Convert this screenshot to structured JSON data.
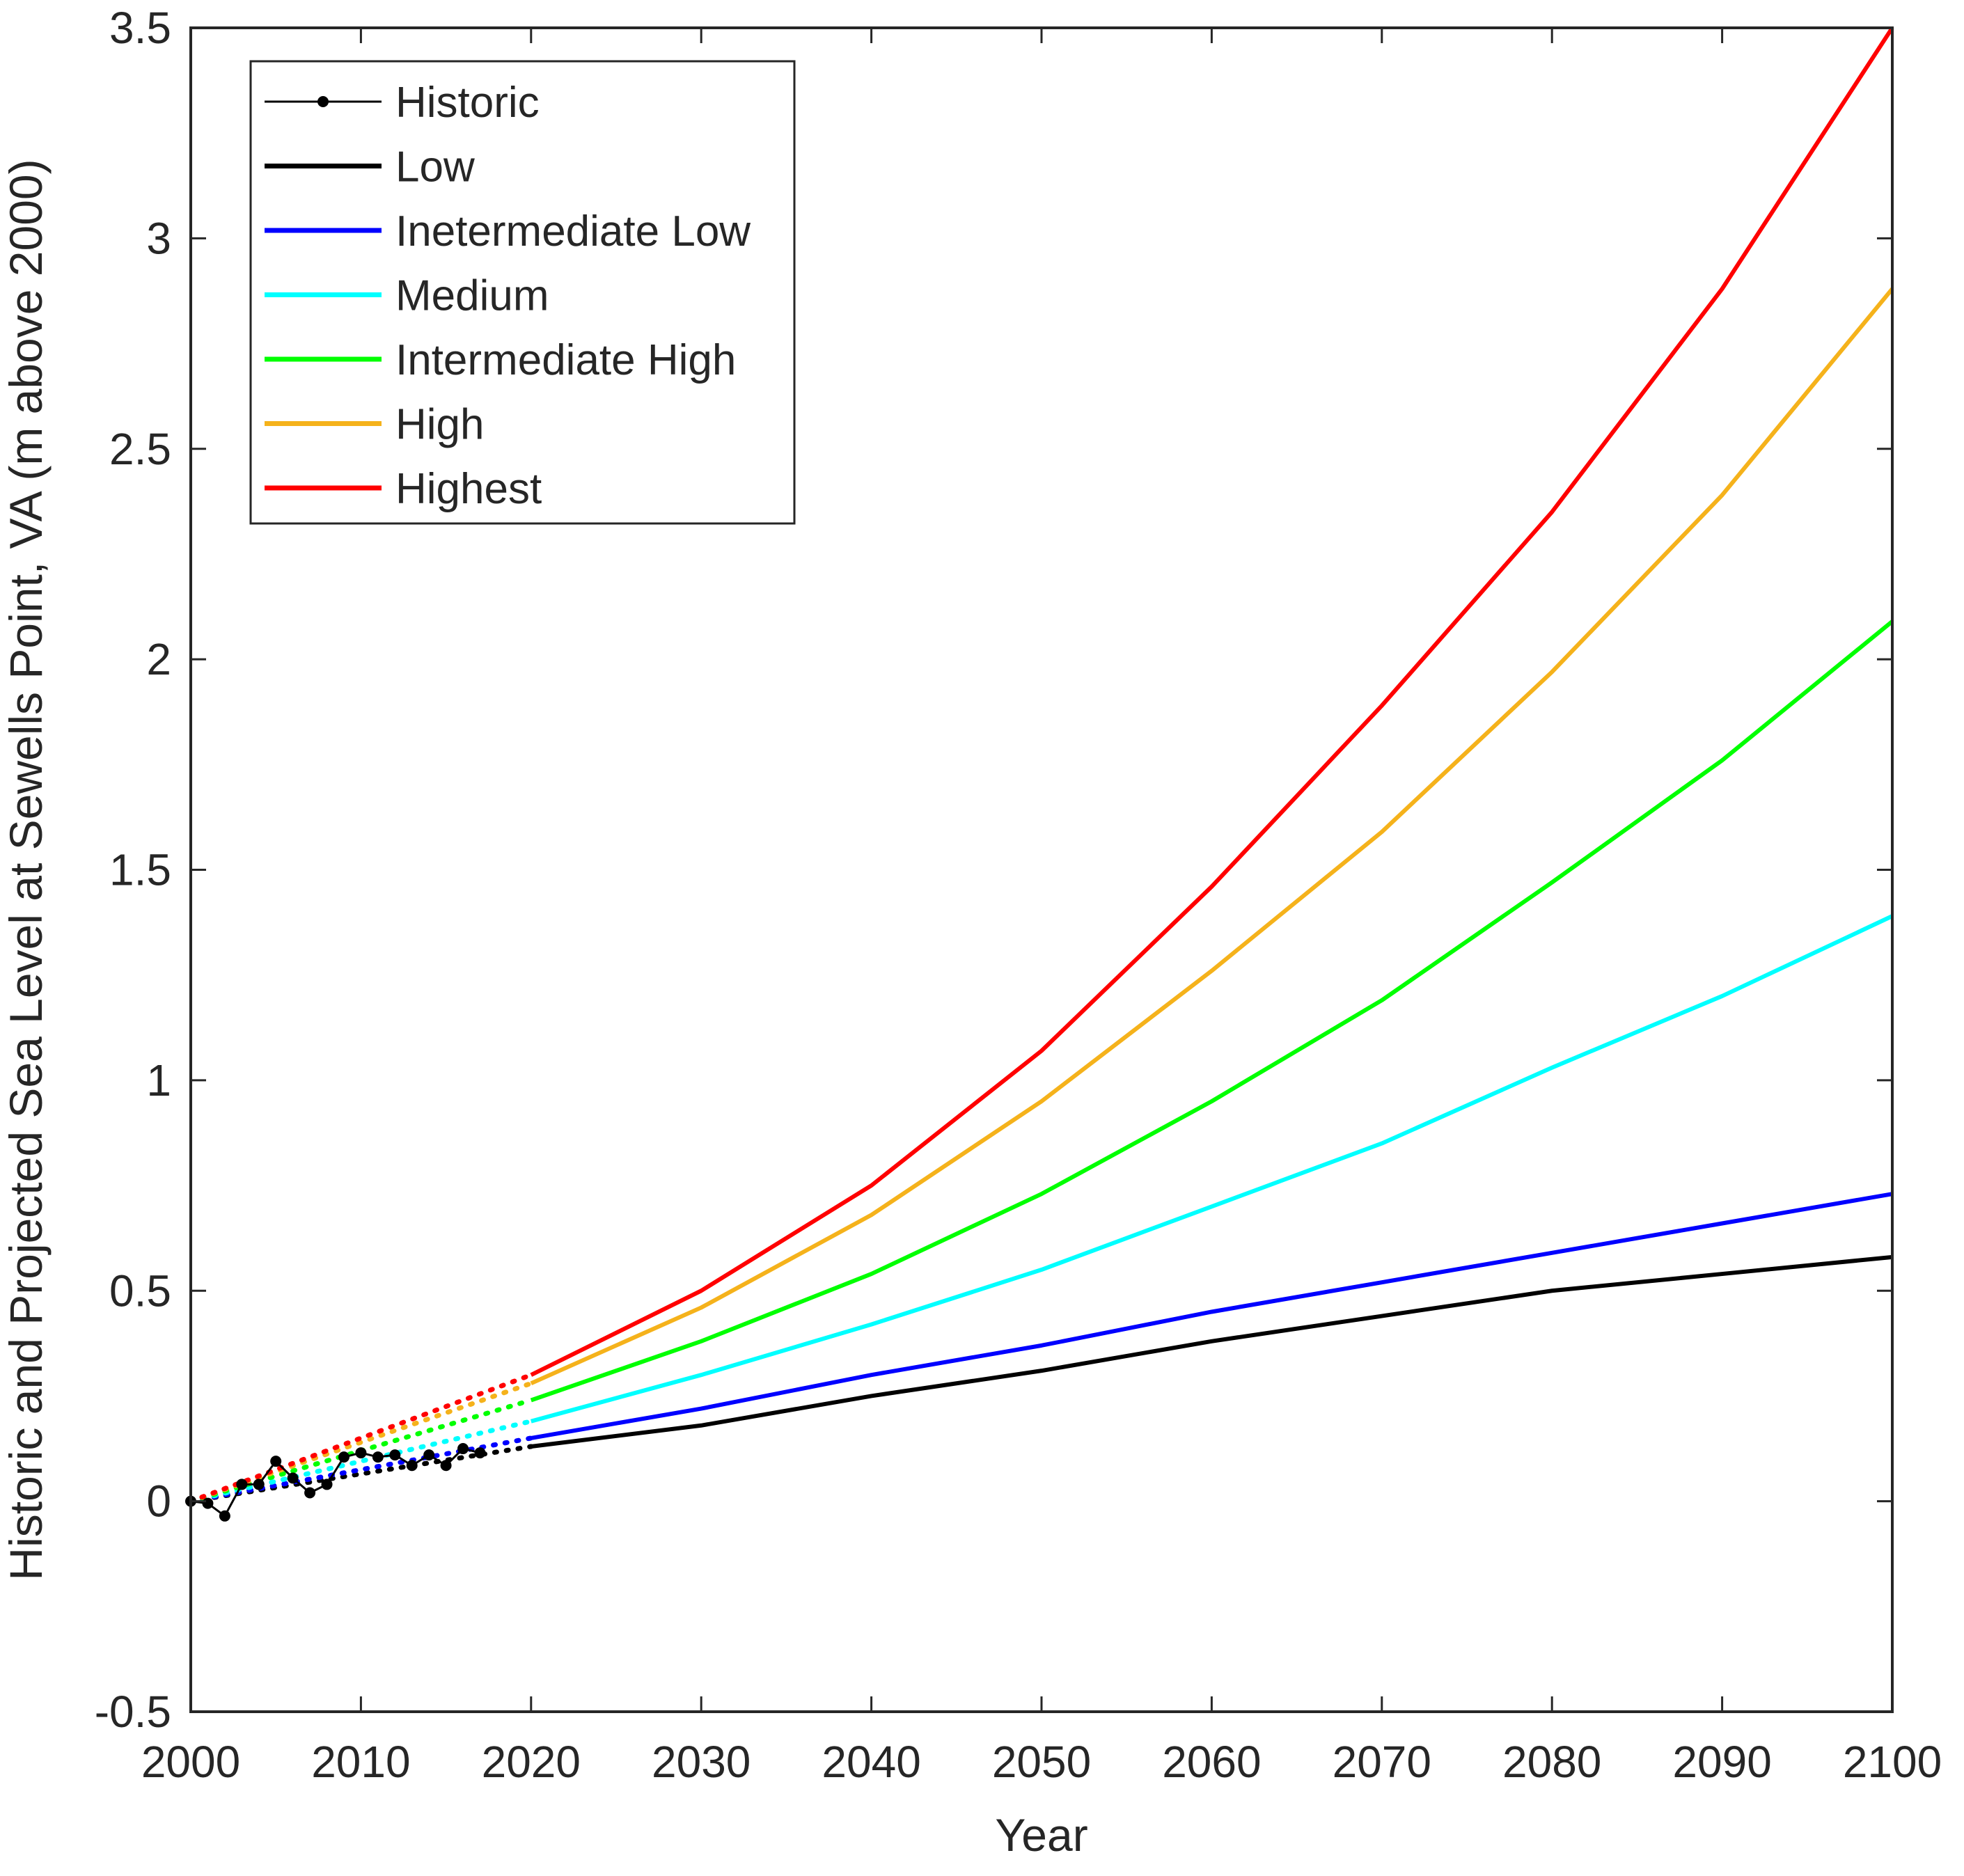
{
  "chart_data": {
    "type": "line",
    "title": "",
    "xlabel": "Year",
    "ylabel": "Historic and Projected Sea Level at Sewells Point, VA (m above 2000)",
    "xlim": [
      2000,
      2100
    ],
    "ylim": [
      -0.5,
      3.5
    ],
    "x_ticks": [
      "2000",
      "2010",
      "2020",
      "2030",
      "2040",
      "2050",
      "2060",
      "2070",
      "2080",
      "2090",
      "2100"
    ],
    "x_tick_values": [
      2000,
      2010,
      2020,
      2030,
      2040,
      2050,
      2060,
      2070,
      2080,
      2090,
      2100
    ],
    "y_ticks": [
      "-0.5",
      "0",
      "0.5",
      "1",
      "1.5",
      "2",
      "2.5",
      "3",
      "3.5"
    ],
    "y_tick_values": [
      -0.5,
      0,
      0.5,
      1,
      1.5,
      2,
      2.5,
      3,
      3.5
    ],
    "grid": false,
    "legend_position": "top-left",
    "historic": {
      "name": "Historic",
      "color": "#000000",
      "x": [
        2000,
        2001,
        2002,
        2003,
        2004,
        2005,
        2006,
        2007,
        2008,
        2009,
        2010,
        2011,
        2012,
        2013,
        2014,
        2015,
        2016,
        2017
      ],
      "y": [
        0.0,
        -0.005,
        -0.035,
        0.04,
        0.04,
        0.095,
        0.055,
        0.02,
        0.04,
        0.105,
        0.115,
        0.105,
        0.11,
        0.085,
        0.11,
        0.085,
        0.125,
        0.115
      ]
    },
    "projection_x": [
      2020,
      2030,
      2040,
      2050,
      2060,
      2070,
      2080,
      2090,
      2100
    ],
    "series": [
      {
        "name": "Low",
        "color": "#000000",
        "y": [
          0.13,
          0.18,
          0.25,
          0.31,
          0.38,
          0.44,
          0.5,
          0.54,
          0.58
        ]
      },
      {
        "name": "Inetermediate Low",
        "color": "#0000ff",
        "y": [
          0.15,
          0.22,
          0.3,
          0.37,
          0.45,
          0.52,
          0.59,
          0.66,
          0.73
        ]
      },
      {
        "name": "Medium",
        "color": "#00ffff",
        "y": [
          0.19,
          0.3,
          0.42,
          0.55,
          0.7,
          0.85,
          1.03,
          1.2,
          1.39
        ]
      },
      {
        "name": "Intermediate High",
        "color": "#00ff00",
        "y": [
          0.24,
          0.38,
          0.54,
          0.73,
          0.95,
          1.19,
          1.47,
          1.76,
          2.09
        ]
      },
      {
        "name": "High",
        "color": "#f5b21b",
        "y": [
          0.28,
          0.46,
          0.68,
          0.95,
          1.26,
          1.59,
          1.97,
          2.39,
          2.88
        ]
      },
      {
        "name": "Highest",
        "color": "#ff0000",
        "y": [
          0.3,
          0.5,
          0.75,
          1.07,
          1.46,
          1.89,
          2.35,
          2.88,
          3.5
        ]
      }
    ]
  }
}
